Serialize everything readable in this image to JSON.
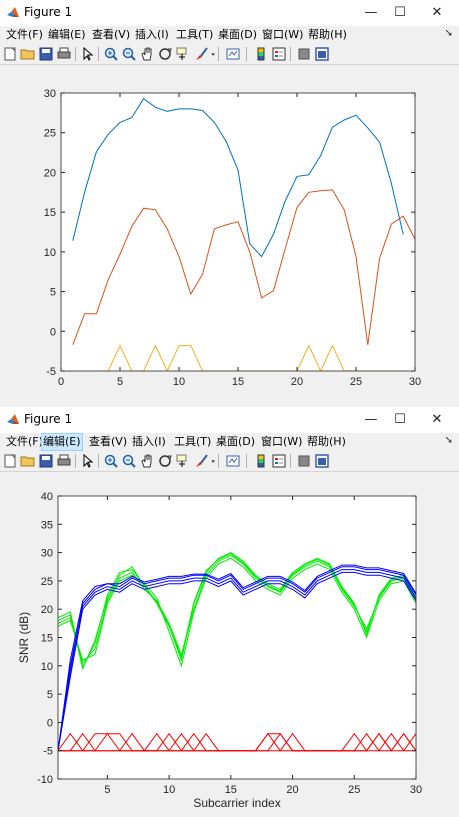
{
  "windows": [
    {
      "title": "Figure 1",
      "controls": {
        "minimize": "—",
        "maximize": "☐",
        "close": "✕"
      },
      "menu": [
        "文件(F)",
        "编辑(E)",
        "查看(V)",
        "插入(I)",
        "工具(T)",
        "桌面(D)",
        "窗口(W)",
        "帮助(H)"
      ],
      "selected_menu": ""
    },
    {
      "title": "Figure 1",
      "controls": {
        "minimize": "—",
        "maximize": "☐",
        "close": "✕"
      },
      "menu": [
        "文件(F)",
        "编辑(E)",
        "查看(V)",
        "插入(I)",
        "工具(T)",
        "桌面(D)",
        "窗口(W)",
        "帮助(H)"
      ],
      "selected_menu": "编辑(E)"
    }
  ],
  "toolbar_icons": [
    "new-figure-icon",
    "open-file-icon",
    "save-icon",
    "print-icon",
    "edit-plot-arrow-icon",
    "zoom-in-icon",
    "zoom-out-icon",
    "pan-hand-icon",
    "rotate-3d-icon",
    "data-cursor-icon",
    "brush-icon",
    "brush-dropdown-icon",
    "link-plot-icon",
    "insert-colorbar-icon",
    "insert-legend-icon",
    "hide-plot-tools-icon",
    "show-plot-tools-icon"
  ],
  "colors": {
    "blue_line": "#0072bd",
    "orange_line": "#d95319",
    "yellow_line": "#edb120",
    "green": "#00ee00",
    "dark_blue": "#0000ff",
    "red": "#ff0000"
  },
  "chart_data": [
    {
      "type": "line",
      "xlim": [
        0,
        30
      ],
      "ylim": [
        -5,
        30
      ],
      "xticks": [
        0,
        5,
        10,
        15,
        20,
        25,
        30
      ],
      "yticks": [
        -5,
        0,
        5,
        10,
        15,
        20,
        25,
        30
      ],
      "xlabel": "",
      "ylabel": "",
      "grid": false,
      "series": [
        {
          "color": "#0072bd",
          "x": [
            1,
            2,
            3,
            4,
            5,
            6,
            7,
            8,
            9,
            10,
            11,
            12,
            13,
            14,
            15,
            16,
            17,
            18,
            19,
            20,
            21,
            22,
            23,
            24,
            25,
            26,
            27,
            28,
            29
          ],
          "y": [
            11.4,
            17.5,
            22.6,
            24.8,
            26.3,
            26.9,
            29.3,
            28.2,
            27.7,
            28.0,
            28.0,
            27.8,
            26.3,
            23.9,
            20.3,
            11.0,
            9.4,
            12.2,
            16.4,
            19.5,
            19.7,
            22.1,
            25.7,
            26.6,
            27.2,
            25.6,
            23.8,
            18.6,
            12.2
          ]
        },
        {
          "color": "#d95319",
          "x": [
            1,
            2,
            3,
            4,
            5,
            6,
            7,
            8,
            9,
            10,
            11,
            12,
            13,
            14,
            15,
            16,
            17,
            18,
            19,
            20,
            21,
            22,
            23,
            24,
            25,
            26,
            27,
            28,
            29,
            30
          ],
          "y": [
            -1.7,
            2.2,
            2.2,
            6.5,
            9.7,
            13.2,
            15.5,
            15.3,
            12.9,
            9.4,
            4.7,
            7.2,
            12.9,
            13.4,
            13.8,
            10.0,
            4.2,
            5.1,
            10.4,
            15.6,
            17.5,
            17.7,
            17.8,
            15.3,
            9.4,
            -1.7,
            9.2,
            13.5,
            14.5,
            11.6
          ]
        },
        {
          "color": "#edb120",
          "x": [
            3,
            4,
            5,
            6,
            7,
            8,
            9,
            10,
            11,
            12,
            13,
            14,
            15,
            16,
            17,
            18,
            19,
            20,
            21,
            22,
            23,
            24,
            25,
            26,
            27,
            28,
            29
          ],
          "y": [
            -5,
            -5,
            -1.8,
            -5,
            -5,
            -1.8,
            -5,
            -1.8,
            -1.8,
            -5,
            -5,
            -5,
            -5,
            -5,
            -5,
            -5,
            -5,
            -5,
            -1.8,
            -5,
            -1.8,
            -5,
            -5,
            -5,
            -5,
            -5,
            -5
          ]
        }
      ]
    },
    {
      "type": "line",
      "xlim": [
        1,
        30
      ],
      "ylim": [
        -10,
        40
      ],
      "xticks": [
        5,
        10,
        15,
        20,
        25,
        30
      ],
      "yticks": [
        -10,
        -5,
        0,
        5,
        10,
        15,
        20,
        25,
        30,
        35,
        40
      ],
      "xlabel": "Subcarrier index",
      "ylabel": "SNR (dB)",
      "grid": false,
      "x": [
        1,
        2,
        3,
        4,
        5,
        6,
        7,
        8,
        9,
        10,
        11,
        12,
        13,
        14,
        15,
        16,
        17,
        18,
        19,
        20,
        21,
        22,
        23,
        24,
        25,
        26,
        27,
        28,
        29,
        30
      ],
      "series": [
        {
          "color": "#00ee00",
          "y": [
            18.0,
            19.0,
            9.5,
            14.5,
            22.0,
            26.0,
            27.5,
            24.0,
            21.0,
            17.0,
            11.0,
            21.0,
            26.5,
            29.0,
            30.0,
            28.5,
            26.0,
            24.5,
            23.5,
            26.5,
            28.0,
            29.0,
            28.0,
            24.0,
            21.0,
            15.5,
            22.5,
            25.5,
            26.0,
            22.0
          ]
        },
        {
          "color": "#00ee00",
          "y": [
            17.5,
            18.5,
            10.5,
            13.0,
            21.5,
            25.5,
            26.5,
            23.5,
            21.5,
            17.5,
            12.0,
            20.0,
            26.0,
            28.5,
            29.5,
            28.0,
            25.5,
            24.0,
            23.0,
            26.0,
            27.5,
            28.5,
            27.5,
            23.5,
            20.5,
            16.5,
            22.0,
            25.0,
            25.5,
            21.5
          ]
        },
        {
          "color": "#00ee00",
          "y": [
            17.0,
            18.0,
            11.0,
            12.0,
            21.0,
            25.0,
            26.0,
            24.5,
            22.0,
            16.0,
            10.0,
            19.5,
            25.5,
            28.0,
            29.0,
            27.5,
            25.0,
            23.5,
            22.5,
            25.5,
            27.0,
            28.0,
            27.0,
            23.0,
            20.0,
            15.0,
            21.5,
            24.5,
            25.0,
            21.0
          ]
        },
        {
          "color": "#00ee00",
          "y": [
            18.5,
            19.5,
            9.8,
            14.0,
            22.5,
            26.5,
            27.0,
            24.2,
            21.2,
            17.2,
            11.5,
            21.2,
            26.8,
            28.8,
            29.8,
            28.2,
            25.8,
            24.2,
            23.2,
            26.2,
            27.8,
            28.8,
            27.8,
            23.8,
            20.8,
            16.0,
            22.2,
            25.2,
            25.8,
            21.8
          ]
        },
        {
          "color": "#0000ff",
          "y": [
            -5.0,
            9.0,
            21.0,
            23.5,
            24.5,
            24.0,
            25.5,
            24.5,
            25.0,
            25.5,
            25.5,
            26.0,
            26.0,
            25.0,
            26.0,
            23.5,
            24.5,
            25.5,
            25.5,
            24.5,
            23.0,
            25.5,
            26.5,
            27.5,
            27.5,
            27.0,
            27.0,
            26.5,
            26.0,
            22.5
          ]
        },
        {
          "color": "#0000ff",
          "y": [
            -5.0,
            10.0,
            20.5,
            23.0,
            24.0,
            23.5,
            25.0,
            24.0,
            24.5,
            25.0,
            25.0,
            25.5,
            25.5,
            24.5,
            25.5,
            23.0,
            24.0,
            25.0,
            25.0,
            24.0,
            22.5,
            25.0,
            26.0,
            27.0,
            27.0,
            26.5,
            26.5,
            26.0,
            25.5,
            22.0
          ]
        },
        {
          "color": "#0000ff",
          "y": [
            -5.0,
            11.0,
            21.5,
            24.0,
            24.5,
            24.5,
            25.8,
            24.8,
            25.3,
            25.8,
            25.8,
            26.2,
            26.2,
            25.3,
            26.3,
            23.8,
            24.8,
            25.8,
            25.8,
            24.8,
            23.3,
            25.8,
            26.8,
            27.8,
            27.8,
            27.3,
            27.3,
            26.8,
            26.3,
            22.8
          ]
        },
        {
          "color": "#0000ff",
          "y": [
            -5.0,
            8.0,
            20.0,
            22.5,
            23.5,
            23.0,
            24.5,
            23.5,
            24.0,
            24.5,
            24.5,
            25.0,
            25.0,
            24.0,
            25.0,
            22.5,
            23.5,
            24.5,
            24.5,
            23.5,
            22.0,
            24.5,
            25.5,
            26.5,
            26.5,
            26.0,
            26.0,
            25.5,
            25.0,
            21.5
          ]
        },
        {
          "color": "#ff0000",
          "y": [
            -5,
            -2,
            -5,
            -2,
            -2,
            -5,
            -2,
            -5,
            -5,
            -2,
            -5,
            -2,
            -5,
            -5,
            -5,
            -5,
            -5,
            -2,
            -5,
            -5,
            -5,
            -5,
            -5,
            -5,
            -5,
            -5,
            -5,
            -5,
            -5,
            -5
          ]
        },
        {
          "color": "#ff0000",
          "y": [
            -5,
            -5,
            -2,
            -5,
            -2,
            -2,
            -5,
            -5,
            -2,
            -5,
            -2,
            -5,
            -2,
            -5,
            -5,
            -5,
            -5,
            -5,
            -2,
            -5,
            -5,
            -5,
            -5,
            -5,
            -2,
            -5,
            -2,
            -5,
            -2,
            -5
          ]
        },
        {
          "color": "#ff0000",
          "y": [
            -5,
            -5,
            -5,
            -5,
            -5,
            -5,
            -5,
            -5,
            -5,
            -5,
            -5,
            -5,
            -5,
            -5,
            -5,
            -5,
            -5,
            -2,
            -2,
            -5,
            -5,
            -5,
            -5,
            -5,
            -5,
            -2,
            -5,
            -2,
            -5,
            -2
          ]
        },
        {
          "color": "#ff0000",
          "y": [
            -5,
            -5,
            -5,
            -5,
            -5,
            -5,
            -5,
            -5,
            -5,
            -5,
            -5,
            -5,
            -5,
            -5,
            -5,
            -5,
            -5,
            -5,
            -5,
            -2,
            -5,
            -5,
            -5,
            -5,
            -5,
            -5,
            -2,
            -5,
            -2,
            -5
          ]
        }
      ]
    }
  ]
}
